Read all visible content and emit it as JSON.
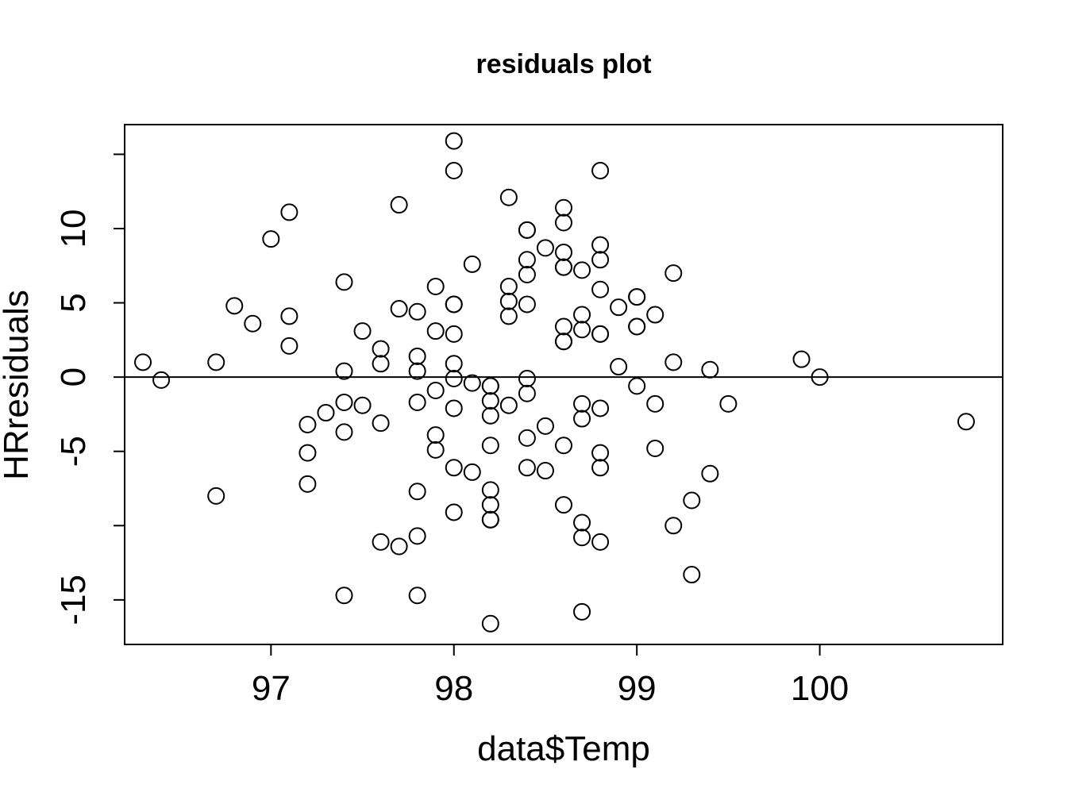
{
  "chart_data": {
    "type": "scatter",
    "title": "residuals plot",
    "xlabel": "data$Temp",
    "ylabel": "HRresiduals",
    "xlim": [
      96.2,
      101.0
    ],
    "ylim": [
      -18,
      17
    ],
    "x_ticks": [
      97,
      98,
      99,
      100
    ],
    "y_ticks": [
      -15,
      -10,
      -5,
      0,
      5,
      10,
      15
    ],
    "y_tick_labels": [
      "-15",
      "",
      "-5",
      "0",
      "5",
      "10",
      ""
    ],
    "reference_line_y": 0,
    "grid": false,
    "marker": "open-circle",
    "points": [
      {
        "x": 96.3,
        "y": 1.0
      },
      {
        "x": 96.4,
        "y": -0.2
      },
      {
        "x": 96.7,
        "y": 1.0
      },
      {
        "x": 96.7,
        "y": -8.0
      },
      {
        "x": 96.8,
        "y": 4.8
      },
      {
        "x": 96.9,
        "y": 3.6
      },
      {
        "x": 97.0,
        "y": 9.3
      },
      {
        "x": 97.1,
        "y": 11.1
      },
      {
        "x": 97.1,
        "y": 4.1
      },
      {
        "x": 97.1,
        "y": 2.1
      },
      {
        "x": 97.2,
        "y": -3.2
      },
      {
        "x": 97.2,
        "y": -5.1
      },
      {
        "x": 97.2,
        "y": -7.2
      },
      {
        "x": 97.3,
        "y": -2.4
      },
      {
        "x": 97.4,
        "y": 6.4
      },
      {
        "x": 97.4,
        "y": 0.4
      },
      {
        "x": 97.4,
        "y": -1.7
      },
      {
        "x": 97.4,
        "y": -3.7
      },
      {
        "x": 97.4,
        "y": -14.7
      },
      {
        "x": 97.5,
        "y": 3.1
      },
      {
        "x": 97.5,
        "y": -1.9
      },
      {
        "x": 97.6,
        "y": 1.9
      },
      {
        "x": 97.6,
        "y": 0.9
      },
      {
        "x": 97.6,
        "y": -3.1
      },
      {
        "x": 97.6,
        "y": -11.1
      },
      {
        "x": 97.7,
        "y": 11.6
      },
      {
        "x": 97.7,
        "y": 4.6
      },
      {
        "x": 97.7,
        "y": -11.4
      },
      {
        "x": 97.8,
        "y": 4.4
      },
      {
        "x": 97.8,
        "y": 1.4
      },
      {
        "x": 97.8,
        "y": 0.4
      },
      {
        "x": 97.8,
        "y": -1.7
      },
      {
        "x": 97.8,
        "y": -7.7
      },
      {
        "x": 97.8,
        "y": -10.7
      },
      {
        "x": 97.8,
        "y": -14.7
      },
      {
        "x": 97.9,
        "y": 6.1
      },
      {
        "x": 97.9,
        "y": 3.1
      },
      {
        "x": 97.9,
        "y": -0.9
      },
      {
        "x": 97.9,
        "y": -3.9
      },
      {
        "x": 97.9,
        "y": -4.9
      },
      {
        "x": 98.0,
        "y": 15.9
      },
      {
        "x": 98.0,
        "y": 13.9
      },
      {
        "x": 98.0,
        "y": 4.9
      },
      {
        "x": 98.0,
        "y": 4.9
      },
      {
        "x": 98.0,
        "y": 2.9
      },
      {
        "x": 98.0,
        "y": 0.9
      },
      {
        "x": 98.0,
        "y": -0.1
      },
      {
        "x": 98.0,
        "y": -2.1
      },
      {
        "x": 98.0,
        "y": -6.1
      },
      {
        "x": 98.0,
        "y": -9.1
      },
      {
        "x": 98.1,
        "y": 7.6
      },
      {
        "x": 98.1,
        "y": -0.4
      },
      {
        "x": 98.1,
        "y": -6.4
      },
      {
        "x": 98.2,
        "y": -0.6
      },
      {
        "x": 98.2,
        "y": -0.6
      },
      {
        "x": 98.2,
        "y": -1.6
      },
      {
        "x": 98.2,
        "y": -2.6
      },
      {
        "x": 98.2,
        "y": -4.6
      },
      {
        "x": 98.2,
        "y": -7.6
      },
      {
        "x": 98.2,
        "y": -8.6
      },
      {
        "x": 98.2,
        "y": -9.6
      },
      {
        "x": 98.2,
        "y": -9.6
      },
      {
        "x": 98.2,
        "y": -16.6
      },
      {
        "x": 98.3,
        "y": 12.1
      },
      {
        "x": 98.3,
        "y": 6.1
      },
      {
        "x": 98.3,
        "y": 5.1
      },
      {
        "x": 98.3,
        "y": 4.1
      },
      {
        "x": 98.3,
        "y": -1.9
      },
      {
        "x": 98.4,
        "y": 9.9
      },
      {
        "x": 98.4,
        "y": 9.9
      },
      {
        "x": 98.4,
        "y": 7.9
      },
      {
        "x": 98.4,
        "y": 6.9
      },
      {
        "x": 98.4,
        "y": 4.9
      },
      {
        "x": 98.4,
        "y": -0.1
      },
      {
        "x": 98.4,
        "y": -1.1
      },
      {
        "x": 98.4,
        "y": -4.1
      },
      {
        "x": 98.4,
        "y": -6.1
      },
      {
        "x": 98.5,
        "y": 8.7
      },
      {
        "x": 98.5,
        "y": -3.3
      },
      {
        "x": 98.5,
        "y": -6.3
      },
      {
        "x": 98.6,
        "y": 11.4
      },
      {
        "x": 98.6,
        "y": 10.4
      },
      {
        "x": 98.6,
        "y": 8.4
      },
      {
        "x": 98.6,
        "y": 7.4
      },
      {
        "x": 98.6,
        "y": 7.4
      },
      {
        "x": 98.6,
        "y": 3.4
      },
      {
        "x": 98.6,
        "y": 2.4
      },
      {
        "x": 98.6,
        "y": 2.4
      },
      {
        "x": 98.6,
        "y": -4.6
      },
      {
        "x": 98.6,
        "y": -8.6
      },
      {
        "x": 98.7,
        "y": 7.2
      },
      {
        "x": 98.7,
        "y": 4.2
      },
      {
        "x": 98.7,
        "y": 3.2
      },
      {
        "x": 98.7,
        "y": -1.8
      },
      {
        "x": 98.7,
        "y": -2.8
      },
      {
        "x": 98.7,
        "y": -9.8
      },
      {
        "x": 98.7,
        "y": -10.8
      },
      {
        "x": 98.7,
        "y": -15.8
      },
      {
        "x": 98.8,
        "y": 13.9
      },
      {
        "x": 98.8,
        "y": 8.9
      },
      {
        "x": 98.8,
        "y": 7.9
      },
      {
        "x": 98.8,
        "y": 5.9
      },
      {
        "x": 98.8,
        "y": 2.9
      },
      {
        "x": 98.8,
        "y": 2.9
      },
      {
        "x": 98.8,
        "y": -2.1
      },
      {
        "x": 98.8,
        "y": -5.1
      },
      {
        "x": 98.8,
        "y": -6.1
      },
      {
        "x": 98.8,
        "y": -11.1
      },
      {
        "x": 98.9,
        "y": 4.7
      },
      {
        "x": 98.9,
        "y": 0.7
      },
      {
        "x": 99.0,
        "y": 5.4
      },
      {
        "x": 99.0,
        "y": 5.4
      },
      {
        "x": 99.0,
        "y": 3.4
      },
      {
        "x": 99.0,
        "y": 3.4
      },
      {
        "x": 99.0,
        "y": -0.6
      },
      {
        "x": 99.1,
        "y": 4.2
      },
      {
        "x": 99.1,
        "y": -1.8
      },
      {
        "x": 99.1,
        "y": -4.8
      },
      {
        "x": 99.2,
        "y": 7.0
      },
      {
        "x": 99.2,
        "y": 1.0
      },
      {
        "x": 99.2,
        "y": -10.0
      },
      {
        "x": 99.3,
        "y": -8.3
      },
      {
        "x": 99.3,
        "y": -13.3
      },
      {
        "x": 99.4,
        "y": 0.5
      },
      {
        "x": 99.4,
        "y": -6.5
      },
      {
        "x": 99.5,
        "y": -1.8
      },
      {
        "x": 99.9,
        "y": 1.2
      },
      {
        "x": 100.0,
        "y": 0.0
      },
      {
        "x": 100.8,
        "y": -3.0
      }
    ]
  }
}
